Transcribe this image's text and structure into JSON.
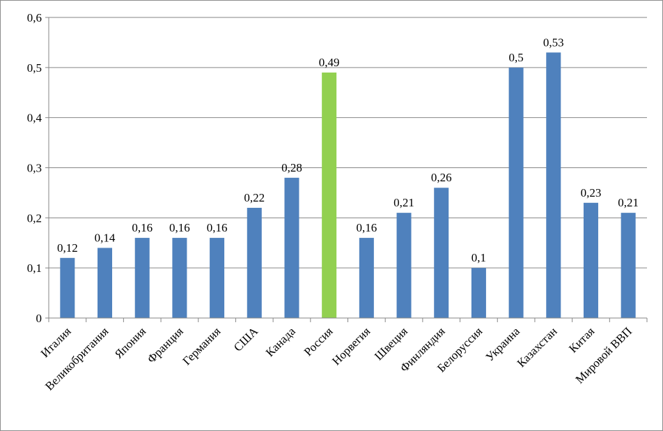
{
  "chart_data": {
    "type": "bar",
    "title": "",
    "xlabel": "",
    "ylabel": "",
    "categories": [
      "Италия",
      "Великобритания",
      "Япония",
      "Франция",
      "Германия",
      "США",
      "Канада",
      "Россия",
      "Норвегия",
      "Швеция",
      "Финляндия",
      "Белоруссия",
      "Украина",
      "Казахстан",
      "Китая",
      "Мировой ВВП"
    ],
    "values": [
      0.12,
      0.14,
      0.16,
      0.16,
      0.16,
      0.22,
      0.28,
      0.49,
      0.16,
      0.21,
      0.26,
      0.1,
      0.5,
      0.53,
      0.23,
      0.21
    ],
    "value_labels": [
      "0,12",
      "0,14",
      "0,16",
      "0,16",
      "0,16",
      "0,22",
      "0,28",
      "0,49",
      "0,16",
      "0,21",
      "0,26",
      "0,1",
      "0,5",
      "0,53",
      "0,23",
      "0,21"
    ],
    "ylim": [
      0,
      0.6
    ],
    "yticks": [
      0,
      0.1,
      0.2,
      0.3,
      0.4,
      0.5,
      0.6
    ],
    "ytick_labels": [
      "0",
      "0,1",
      "0,2",
      "0,3",
      "0,4",
      "0,5",
      "0,6"
    ],
    "grid": true,
    "legend": "none",
    "bar_color": "#4f81bd",
    "highlight_index": 7,
    "highlight_color": "#92d050"
  }
}
